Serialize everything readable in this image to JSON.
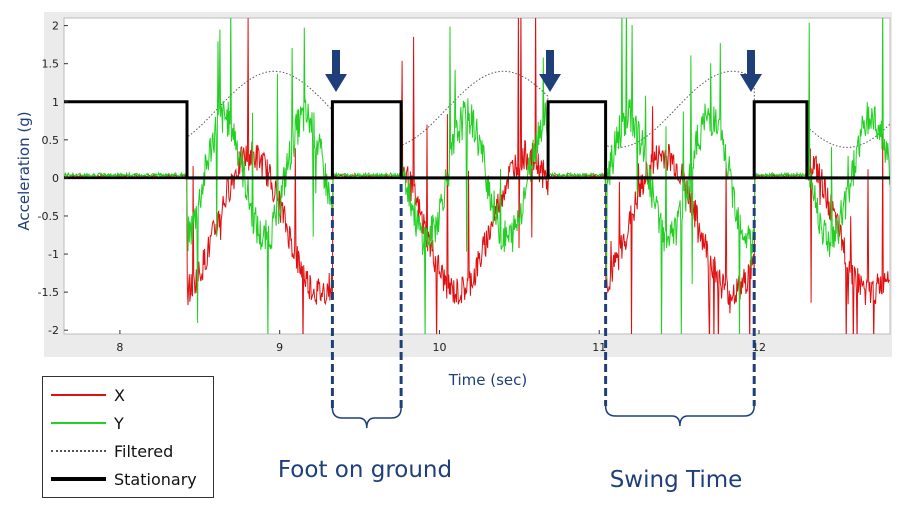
{
  "chart_data": {
    "type": "line",
    "xlabel": "Time (sec)",
    "ylabel": "Acceleration (g)",
    "xlim": [
      7.65,
      12.82
    ],
    "ylim": [
      -2.05,
      2.1
    ],
    "x_ticks": [
      "8",
      "9",
      "10",
      "11",
      "12"
    ],
    "y_ticks": [
      "2",
      "1.5",
      "1",
      "0.5",
      "0",
      "-0.5",
      "-1",
      "-1.5",
      "-2"
    ],
    "series": [
      {
        "name": "X",
        "color": "#e01010",
        "style": "solid"
      },
      {
        "name": "Y",
        "color": "#22d022",
        "style": "solid"
      },
      {
        "name": "Filtered",
        "color": "#555555",
        "style": "dotted"
      },
      {
        "name": "Stationary",
        "color": "#000000",
        "style": "thick",
        "x": [
          7.65,
          8.42,
          8.42,
          9.33,
          9.33,
          9.76,
          9.76,
          10.68,
          10.68,
          11.04,
          11.04,
          11.97,
          11.97,
          12.3,
          12.3,
          12.82
        ],
        "values": [
          1,
          1,
          0,
          0,
          1,
          1,
          0,
          0,
          1,
          1,
          0,
          0,
          1,
          1,
          0,
          0
        ]
      }
    ],
    "arrows_at_x": [
      9.0,
      10.68,
      11.97
    ],
    "annotations": [
      {
        "text": "Foot on ground",
        "from_x": 9.33,
        "to_x": 9.76
      },
      {
        "text": "Swing Time",
        "from_x": 11.04,
        "to_x": 11.97
      }
    ]
  },
  "legend": {
    "items": [
      "X",
      "Y",
      "Filtered",
      "Stationary"
    ]
  }
}
